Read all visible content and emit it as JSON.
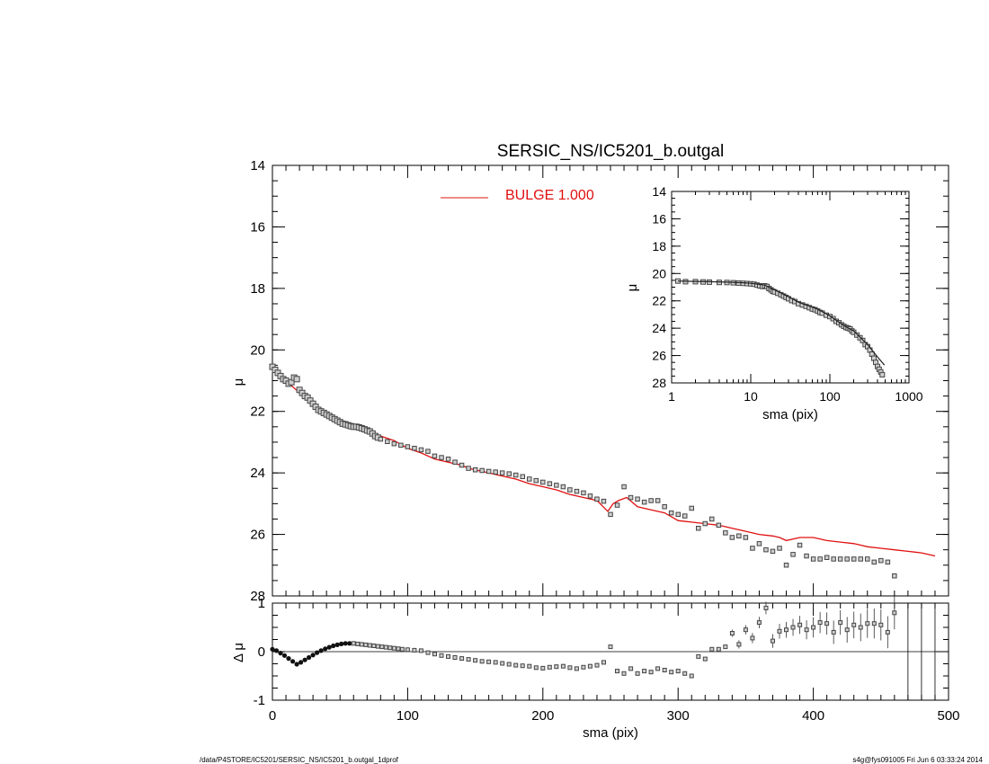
{
  "footer": {
    "path": "/data/P4STORE/IC5201/SERSIC_NS/IC5201_b.outgal_1dprof",
    "stamp": "s4g@fys091005  Fri Jun  6 03:33:24 2014"
  },
  "colors": {
    "model": "#e01010",
    "data": "#555555",
    "axis": "#000000"
  },
  "chart_data": [
    {
      "id": "main",
      "type": "scatter",
      "title": "SERSIC_NS/IC5201_b.outgal",
      "xlabel": "",
      "ylabel": "μ",
      "xlim": [
        0,
        500
      ],
      "ylim": [
        28,
        14
      ],
      "xticks": [
        0,
        100,
        200,
        300,
        400,
        500
      ],
      "yticks": [
        14,
        16,
        18,
        20,
        22,
        24,
        26,
        28
      ],
      "legend": {
        "label": "BULGE  1.000",
        "placement": "top-center"
      },
      "series": [
        {
          "role": "model",
          "kind": "line",
          "x": [
            0,
            5,
            10,
            15,
            20,
            25,
            30,
            40,
            50,
            60,
            70,
            80,
            90,
            100,
            110,
            120,
            130,
            140,
            145,
            150,
            160,
            170,
            180,
            190,
            200,
            210,
            220,
            230,
            240,
            248,
            252,
            256,
            262,
            270,
            280,
            290,
            300,
            310,
            320,
            330,
            340,
            350,
            360,
            370,
            375,
            380,
            390,
            400,
            410,
            420,
            430,
            435,
            440,
            450,
            460,
            470,
            480,
            490
          ],
          "y": [
            20.55,
            20.75,
            21.0,
            21.2,
            21.4,
            21.6,
            21.75,
            22.05,
            22.3,
            22.5,
            22.65,
            22.8,
            22.95,
            23.2,
            23.35,
            23.55,
            23.65,
            23.75,
            23.85,
            23.9,
            24.0,
            24.1,
            24.2,
            24.35,
            24.45,
            24.55,
            24.7,
            24.8,
            24.9,
            25.25,
            25.0,
            24.9,
            24.8,
            25.1,
            25.2,
            25.3,
            25.55,
            25.6,
            25.65,
            25.7,
            25.8,
            25.9,
            26.0,
            26.05,
            26.1,
            26.2,
            26.1,
            26.1,
            26.2,
            26.25,
            26.3,
            26.35,
            26.4,
            26.45,
            26.5,
            26.55,
            26.6,
            26.7
          ]
        },
        {
          "role": "data",
          "kind": "points",
          "x": [
            0,
            2,
            4,
            6,
            8,
            10,
            12,
            14,
            16,
            18,
            20,
            22,
            24,
            26,
            28,
            30,
            32,
            34,
            36,
            38,
            40,
            42,
            44,
            46,
            48,
            50,
            52,
            54,
            56,
            58,
            60,
            62,
            64,
            66,
            68,
            70,
            72,
            74,
            76,
            78,
            80,
            85,
            90,
            95,
            100,
            105,
            110,
            115,
            120,
            125,
            130,
            135,
            140,
            145,
            150,
            155,
            160,
            165,
            170,
            175,
            180,
            185,
            190,
            195,
            200,
            205,
            210,
            215,
            220,
            225,
            230,
            235,
            240,
            245,
            250,
            255,
            260,
            265,
            270,
            275,
            280,
            285,
            290,
            295,
            300,
            305,
            310,
            315,
            320,
            325,
            330,
            335,
            340,
            345,
            350,
            355,
            360,
            365,
            370,
            375,
            380,
            385,
            390,
            395,
            400,
            405,
            410,
            415,
            420,
            425,
            430,
            435,
            440,
            445,
            450,
            455,
            460
          ],
          "y": [
            20.55,
            20.65,
            20.75,
            20.85,
            20.95,
            21.0,
            21.1,
            21.05,
            20.9,
            20.95,
            21.3,
            21.4,
            21.5,
            21.55,
            21.65,
            21.75,
            21.85,
            21.95,
            22.0,
            22.05,
            22.1,
            22.15,
            22.2,
            22.25,
            22.3,
            22.35,
            22.4,
            22.42,
            22.45,
            22.48,
            22.5,
            22.5,
            22.52,
            22.55,
            22.58,
            22.62,
            22.65,
            22.72,
            22.8,
            22.85,
            22.9,
            22.98,
            23.05,
            23.1,
            23.15,
            23.2,
            23.25,
            23.3,
            23.45,
            23.5,
            23.55,
            23.65,
            23.75,
            23.85,
            23.9,
            23.92,
            23.95,
            23.97,
            24.0,
            24.03,
            24.07,
            24.12,
            24.2,
            24.25,
            24.3,
            24.35,
            24.4,
            24.45,
            24.55,
            24.6,
            24.65,
            24.75,
            24.85,
            24.92,
            25.35,
            25.05,
            24.45,
            24.8,
            24.85,
            24.95,
            24.9,
            24.9,
            25.1,
            25.3,
            25.35,
            25.4,
            25.15,
            25.8,
            25.65,
            25.5,
            25.7,
            25.95,
            26.1,
            26.05,
            26.1,
            26.45,
            26.3,
            26.5,
            26.55,
            26.45,
            27.0,
            26.65,
            26.35,
            26.7,
            26.8,
            26.8,
            26.75,
            26.8,
            26.8,
            26.8,
            26.8,
            26.8,
            26.8,
            26.9,
            26.85,
            26.9,
            27.35
          ]
        }
      ]
    },
    {
      "id": "residual",
      "type": "scatter",
      "xlabel": "sma (pix)",
      "ylabel": "Δ μ",
      "xlim": [
        0,
        500
      ],
      "ylim": [
        -1,
        1
      ],
      "xticks": [
        0,
        100,
        200,
        300,
        400,
        500
      ],
      "yticks": [
        -1,
        0,
        1
      ],
      "x": [
        0,
        3,
        6,
        9,
        12,
        15,
        18,
        21,
        24,
        27,
        30,
        33,
        36,
        39,
        42,
        45,
        48,
        51,
        54,
        57,
        60,
        63,
        66,
        69,
        72,
        75,
        78,
        81,
        84,
        87,
        90,
        93,
        96,
        100,
        105,
        110,
        115,
        120,
        125,
        130,
        135,
        140,
        145,
        150,
        155,
        160,
        165,
        170,
        175,
        180,
        185,
        190,
        195,
        200,
        205,
        210,
        215,
        220,
        225,
        230,
        235,
        240,
        245,
        250,
        255,
        260,
        265,
        270,
        275,
        280,
        285,
        290,
        295,
        300,
        305,
        310,
        315,
        320,
        325,
        330,
        335,
        340,
        345,
        350,
        355,
        360,
        365,
        370,
        375,
        380,
        385,
        390,
        395,
        400,
        405,
        410,
        415,
        420,
        425,
        430,
        435,
        440,
        445,
        450,
        455,
        460
      ],
      "y": [
        0.05,
        0.02,
        -0.03,
        -0.08,
        -0.14,
        -0.2,
        -0.26,
        -0.22,
        -0.17,
        -0.12,
        -0.07,
        -0.02,
        0.02,
        0.06,
        0.09,
        0.12,
        0.14,
        0.16,
        0.17,
        0.17,
        0.17,
        0.16,
        0.15,
        0.14,
        0.13,
        0.12,
        0.11,
        0.1,
        0.09,
        0.08,
        0.07,
        0.06,
        0.05,
        0.04,
        0.03,
        0.02,
        -0.02,
        -0.05,
        -0.08,
        -0.1,
        -0.12,
        -0.14,
        -0.16,
        -0.18,
        -0.2,
        -0.21,
        -0.22,
        -0.24,
        -0.26,
        -0.28,
        -0.29,
        -0.3,
        -0.33,
        -0.34,
        -0.32,
        -0.31,
        -0.3,
        -0.33,
        -0.35,
        -0.32,
        -0.3,
        -0.28,
        -0.22,
        0.1,
        -0.4,
        -0.45,
        -0.35,
        -0.45,
        -0.4,
        -0.42,
        -0.35,
        -0.38,
        -0.42,
        -0.4,
        -0.45,
        -0.5,
        -0.1,
        -0.15,
        0.05,
        0.05,
        0.1,
        0.38,
        0.15,
        0.45,
        0.28,
        0.6,
        0.9,
        0.22,
        0.42,
        0.45,
        0.5,
        0.55,
        0.45,
        0.5,
        0.6,
        0.58,
        0.4,
        0.6,
        0.45,
        0.55,
        0.5,
        0.58,
        0.58,
        0.55,
        0.4,
        0.8
      ],
      "verticals": [
        470,
        480,
        490
      ]
    },
    {
      "id": "inset",
      "type": "scatter",
      "xlabel": "sma (pix)",
      "ylabel": "μ",
      "xscale": "log",
      "xlim": [
        1,
        1000
      ],
      "ylim": [
        28,
        14
      ],
      "xticks": [
        1,
        10,
        100,
        1000
      ],
      "yticks": [
        14,
        16,
        18,
        20,
        22,
        24,
        26,
        28
      ],
      "x": [
        1.2,
        1.5,
        2,
        2.5,
        3,
        4,
        5,
        6,
        7,
        8,
        9,
        10,
        11,
        12,
        13,
        14,
        15,
        16,
        17,
        18,
        19,
        20,
        22,
        24,
        26,
        28,
        30,
        33,
        36,
        40,
        45,
        50,
        55,
        60,
        65,
        70,
        75,
        80,
        90,
        100,
        110,
        120,
        130,
        140,
        150,
        160,
        170,
        180,
        190,
        200,
        220,
        240,
        260,
        280,
        300,
        320,
        340,
        360,
        380,
        400,
        420,
        440,
        460
      ],
      "y": [
        20.55,
        20.6,
        20.6,
        20.62,
        20.63,
        20.65,
        20.66,
        20.68,
        20.7,
        20.72,
        20.74,
        20.76,
        20.78,
        20.85,
        20.9,
        20.95,
        20.9,
        20.95,
        21.1,
        21.2,
        21.3,
        21.35,
        21.45,
        21.55,
        21.65,
        21.75,
        21.85,
        21.98,
        22.05,
        22.2,
        22.3,
        22.4,
        22.5,
        22.6,
        22.65,
        22.75,
        22.85,
        22.9,
        23.05,
        23.15,
        23.3,
        23.5,
        23.6,
        23.75,
        23.85,
        23.95,
        24.0,
        24.05,
        24.2,
        24.3,
        24.5,
        24.7,
        24.9,
        25.2,
        25.35,
        25.6,
        25.9,
        26.2,
        26.5,
        26.8,
        27.0,
        27.2,
        27.4
      ],
      "model_x": [
        1.2,
        2,
        3,
        5,
        8,
        10,
        15,
        20,
        30,
        40,
        50,
        70,
        100,
        150,
        200,
        300,
        400,
        490
      ],
      "model_y": [
        20.55,
        20.58,
        20.6,
        20.63,
        20.68,
        20.72,
        20.85,
        21.2,
        21.7,
        22.1,
        22.3,
        22.6,
        23.1,
        23.8,
        24.2,
        25.2,
        26.1,
        26.7
      ]
    }
  ]
}
